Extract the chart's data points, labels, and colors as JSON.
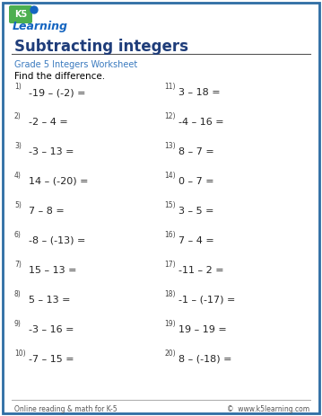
{
  "title": "Subtracting integers",
  "subtitle": "Grade 5 Integers Worksheet",
  "instruction": "Find the difference.",
  "border_color": "#2e6da4",
  "title_color": "#1f3d7a",
  "subtitle_color": "#3a7abf",
  "text_color": "#222222",
  "footer_left": "Online reading & math for K-5",
  "footer_right": "©  www.k5learning.com",
  "bg_color": "#f5f5f5",
  "problems_left": [
    {
      "num": "1)",
      "expr": "-19 – (-2) ="
    },
    {
      "num": "2)",
      "expr": "-2 – 4 ="
    },
    {
      "num": "3)",
      "expr": "-3 – 13 ="
    },
    {
      "num": "4)",
      "expr": "14 – (-20) ="
    },
    {
      "num": "5)",
      "expr": "7 – 8 ="
    },
    {
      "num": "6)",
      "expr": "-8 – (-13) ="
    },
    {
      "num": "7)",
      "expr": "15 – 13 ="
    },
    {
      "num": "8)",
      "expr": "5 – 13 ="
    },
    {
      "num": "9)",
      "expr": "-3 – 16 ="
    },
    {
      "num": "10)",
      "expr": "-7 – 15 ="
    }
  ],
  "problems_right": [
    {
      "num": "11)",
      "expr": "3 – 18 ="
    },
    {
      "num": "12)",
      "expr": "-4 – 16 ="
    },
    {
      "num": "13)",
      "expr": "8 – 7 ="
    },
    {
      "num": "14)",
      "expr": "0 – 7 ="
    },
    {
      "num": "15)",
      "expr": "3 – 5 ="
    },
    {
      "num": "16)",
      "expr": "7 – 4 ="
    },
    {
      "num": "17)",
      "expr": "-11 – 2 ="
    },
    {
      "num": "18)",
      "expr": "-1 – (-17) ="
    },
    {
      "num": "19)",
      "expr": "19 – 19 ="
    },
    {
      "num": "20)",
      "expr": "8 – (-18) ="
    }
  ]
}
